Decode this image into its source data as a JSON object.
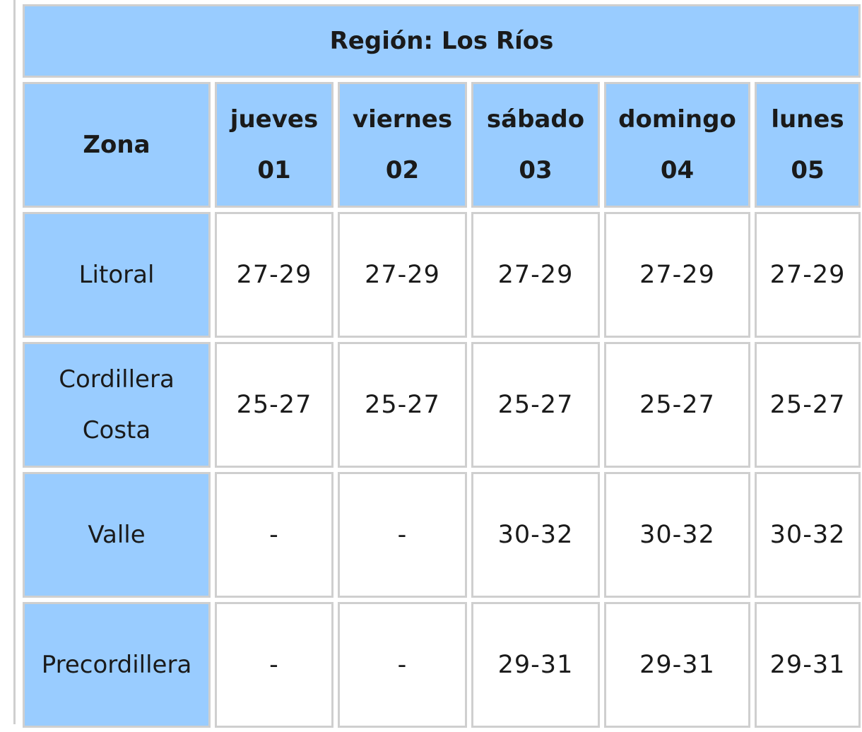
{
  "region_title": "Región: Los Ríos",
  "header": {
    "zone_label": "Zona",
    "days": [
      {
        "name": "jueves",
        "date": "01"
      },
      {
        "name": "viernes",
        "date": "02"
      },
      {
        "name": "sábado",
        "date": "03"
      },
      {
        "name": "domingo",
        "date": "04"
      },
      {
        "name": "lunes",
        "date": "05"
      }
    ]
  },
  "rows": [
    {
      "zone_line1": "Litoral",
      "zone_line2": "",
      "values": [
        "27-29",
        "27-29",
        "27-29",
        "27-29",
        "27-29"
      ]
    },
    {
      "zone_line1": "Cordillera",
      "zone_line2": "Costa",
      "values": [
        "25-27",
        "25-27",
        "25-27",
        "25-27",
        "25-27"
      ]
    },
    {
      "zone_line1": "Valle",
      "zone_line2": "",
      "values": [
        "-",
        "-",
        "30-32",
        "30-32",
        "30-32"
      ]
    },
    {
      "zone_line1": "Precordillera",
      "zone_line2": "",
      "values": [
        "-",
        "-",
        "29-31",
        "29-31",
        "29-31"
      ]
    }
  ]
}
